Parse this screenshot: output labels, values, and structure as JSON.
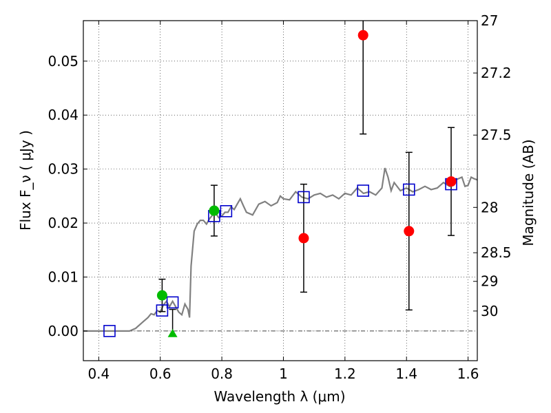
{
  "chart_data": {
    "type": "scatter",
    "title": "",
    "xlabel": "Wavelength  λ (μm)",
    "ylabel": "Flux  F_ν  ( μJy )",
    "ylabel_right": "Magnitude (AB)",
    "xlim": [
      0.35,
      1.63
    ],
    "ylim": [
      -0.0055,
      0.0575
    ],
    "grid": true,
    "legend": "none",
    "x_ticks": [
      0.4,
      0.6,
      0.8,
      1.0,
      1.2,
      1.4,
      1.6
    ],
    "x_tick_labels": [
      "0.4",
      "0.6",
      "0.8",
      "1",
      "1.2",
      "1.4",
      "1.6"
    ],
    "y_ticks": [
      0.0,
      0.01,
      0.02,
      0.03,
      0.04,
      0.05
    ],
    "y_tick_labels": [
      "0.00",
      "0.01",
      "0.02",
      "0.03",
      "0.04",
      "0.05"
    ],
    "right_ticks": [
      {
        "label": "27",
        "flux": 0.0575
      },
      {
        "label": "27.2",
        "flux": 0.0478
      },
      {
        "label": "27.5",
        "flux": 0.0363
      },
      {
        "label": "28",
        "flux": 0.0229
      },
      {
        "label": "28.5",
        "flux": 0.0145
      },
      {
        "label": "29",
        "flux": 0.0092
      },
      {
        "label": "30",
        "flux": 0.0037
      }
    ],
    "colors": {
      "model": "#808080",
      "photometry": "#ff0000",
      "model_photometry": "#0000cc",
      "green": "#00bb00",
      "errorbar": "#000000"
    },
    "series": [
      {
        "type": "line",
        "points": [
          [
            0.35,
            0.0
          ],
          [
            0.45,
            0.0
          ],
          [
            0.5,
            0.0
          ],
          [
            0.52,
            0.0005
          ],
          [
            0.54,
            0.0015
          ],
          [
            0.56,
            0.0025
          ],
          [
            0.57,
            0.0032
          ],
          [
            0.58,
            0.003
          ],
          [
            0.59,
            0.0038
          ],
          [
            0.6,
            0.0035
          ],
          [
            0.61,
            0.0048
          ],
          [
            0.62,
            0.0055
          ],
          [
            0.63,
            0.0045
          ],
          [
            0.64,
            0.0055
          ],
          [
            0.65,
            0.0045
          ],
          [
            0.66,
            0.0035
          ],
          [
            0.67,
            0.003
          ],
          [
            0.68,
            0.005
          ],
          [
            0.69,
            0.004
          ],
          [
            0.695,
            0.0025
          ],
          [
            0.7,
            0.012
          ],
          [
            0.71,
            0.0185
          ],
          [
            0.72,
            0.0198
          ],
          [
            0.73,
            0.0205
          ],
          [
            0.74,
            0.0205
          ],
          [
            0.75,
            0.0198
          ],
          [
            0.76,
            0.0208
          ],
          [
            0.77,
            0.0215
          ],
          [
            0.78,
            0.0218
          ],
          [
            0.79,
            0.021
          ],
          [
            0.8,
            0.0213
          ],
          [
            0.81,
            0.022
          ],
          [
            0.82,
            0.022
          ],
          [
            0.83,
            0.023
          ],
          [
            0.84,
            0.0225
          ],
          [
            0.85,
            0.0235
          ],
          [
            0.86,
            0.0245
          ],
          [
            0.87,
            0.0232
          ],
          [
            0.88,
            0.022
          ],
          [
            0.9,
            0.0215
          ],
          [
            0.92,
            0.0235
          ],
          [
            0.94,
            0.024
          ],
          [
            0.96,
            0.0232
          ],
          [
            0.98,
            0.0238
          ],
          [
            0.99,
            0.025
          ],
          [
            1.0,
            0.0245
          ],
          [
            1.02,
            0.0243
          ],
          [
            1.04,
            0.0258
          ],
          [
            1.06,
            0.0248
          ],
          [
            1.08,
            0.0245
          ],
          [
            1.1,
            0.0252
          ],
          [
            1.12,
            0.0255
          ],
          [
            1.14,
            0.0248
          ],
          [
            1.16,
            0.0252
          ],
          [
            1.18,
            0.0245
          ],
          [
            1.2,
            0.0255
          ],
          [
            1.22,
            0.0252
          ],
          [
            1.24,
            0.0265
          ],
          [
            1.26,
            0.0255
          ],
          [
            1.28,
            0.0258
          ],
          [
            1.3,
            0.0252
          ],
          [
            1.32,
            0.0265
          ],
          [
            1.33,
            0.0302
          ],
          [
            1.34,
            0.0285
          ],
          [
            1.35,
            0.026
          ],
          [
            1.36,
            0.0275
          ],
          [
            1.38,
            0.026
          ],
          [
            1.4,
            0.0265
          ],
          [
            1.42,
            0.0258
          ],
          [
            1.44,
            0.0262
          ],
          [
            1.46,
            0.0268
          ],
          [
            1.48,
            0.0262
          ],
          [
            1.5,
            0.0265
          ],
          [
            1.52,
            0.0275
          ],
          [
            1.54,
            0.0268
          ],
          [
            1.56,
            0.028
          ],
          [
            1.58,
            0.0285
          ],
          [
            1.59,
            0.0268
          ],
          [
            1.6,
            0.027
          ],
          [
            1.61,
            0.0285
          ],
          [
            1.62,
            0.0282
          ],
          [
            1.63,
            0.028
          ]
        ]
      },
      {
        "type": "errorbar",
        "marker": "circle",
        "points": [
          {
            "x": 0.606,
            "y": 0.0066,
            "yerr": 0.003
          },
          {
            "x": 0.775,
            "y": 0.0223,
            "yerr": 0.0047
          },
          {
            "x": 1.066,
            "y": 0.0172,
            "yerr": 0.01
          },
          {
            "x": 1.259,
            "y": 0.0548,
            "yerr": 0.0183
          },
          {
            "x": 1.408,
            "y": 0.0185,
            "yerr": 0.0146
          },
          {
            "x": 1.545,
            "y": 0.0277,
            "yerr": 0.01
          }
        ]
      },
      {
        "type": "scatter",
        "marker": "triangle",
        "points": [
          {
            "x": 0.64,
            "y": -0.0005,
            "yerr": 0.0045
          }
        ]
      },
      {
        "type": "scatter",
        "marker": "square",
        "points": [
          {
            "x": 0.435,
            "y": 0.0
          },
          {
            "x": 0.606,
            "y": 0.0038
          },
          {
            "x": 0.64,
            "y": 0.0053
          },
          {
            "x": 0.775,
            "y": 0.0213
          },
          {
            "x": 0.814,
            "y": 0.0222
          },
          {
            "x": 1.066,
            "y": 0.0248
          },
          {
            "x": 1.259,
            "y": 0.026
          },
          {
            "x": 1.408,
            "y": 0.0262
          },
          {
            "x": 1.545,
            "y": 0.0272
          }
        ]
      }
    ]
  }
}
